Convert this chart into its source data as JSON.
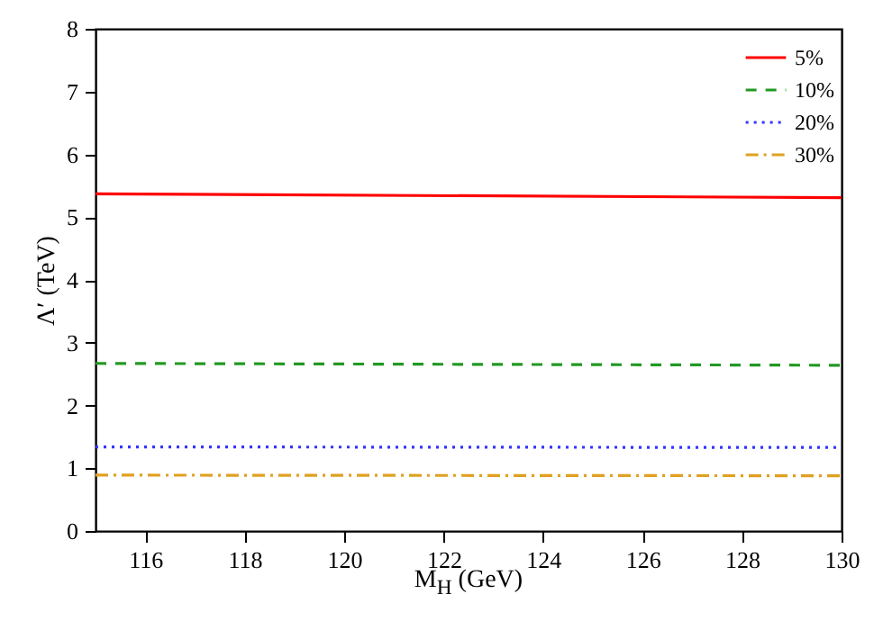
{
  "chart_data": {
    "type": "line",
    "xlabel": "M$_{H}$ (GeV)",
    "ylabel": "Λ′ (TeV)",
    "x": [
      115,
      130
    ],
    "xlim": [
      115,
      130
    ],
    "xticks": [
      116,
      118,
      120,
      122,
      124,
      126,
      128,
      130
    ],
    "ylim": [
      0,
      8
    ],
    "yticks": [
      0,
      1,
      2,
      3,
      4,
      5,
      6,
      7,
      8
    ],
    "legend": "top right",
    "grid": false,
    "series": [
      {
        "name": "5%",
        "color": "#ff0000",
        "line_style": "solid",
        "values": [
          5.37,
          5.31
        ]
      },
      {
        "name": "10%",
        "color": "#229922",
        "line_style": "dashed",
        "values": [
          2.67,
          2.64
        ]
      },
      {
        "name": "20%",
        "color": "#3333ff",
        "line_style": "dotted",
        "values": [
          1.34,
          1.33
        ]
      },
      {
        "name": "30%",
        "color": "#e0a020",
        "line_style": "dashdot",
        "values": [
          0.89,
          0.88
        ]
      }
    ]
  }
}
